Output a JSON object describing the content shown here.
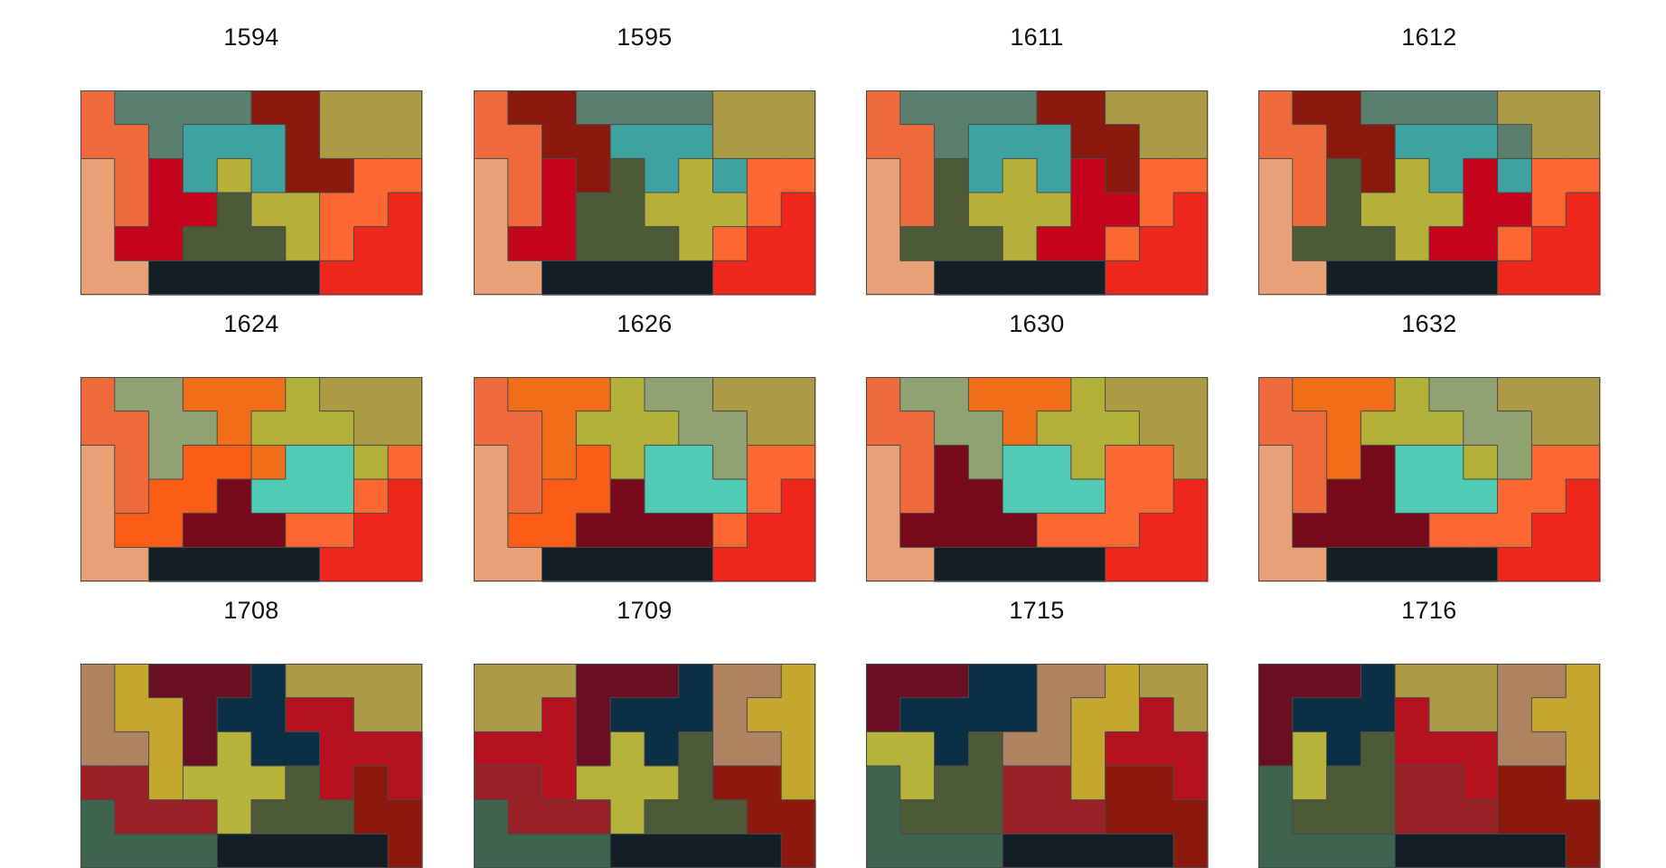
{
  "puzzles": [
    {
      "title": "1594",
      "grid": [
        "ABBBBCCDDD",
        "AABEEECDDD",
        "FAGEHECCJJ",
        "FAGGIHHJJK",
        "FGGIIIHJKK",
        "FFLLLLLKKK"
      ]
    },
    {
      "title": "1595",
      "grid": [
        "ACCBBBBDDD",
        "AACCEEEDDD",
        "FAGCIEHEJJ",
        "FAGIIHHHJK",
        "FGGIIIHJKK",
        "FFLLLLLKKK"
      ]
    },
    {
      "title": "1611",
      "grid": [
        "ABBBBCCDDD",
        "AABEEECCDD",
        "FAIEHEGCJJ",
        "FAIHHHGGJK",
        "FIIIHGGJKK",
        "FFLLLLLKKK"
      ]
    },
    {
      "title": "1612",
      "grid": [
        "ACCBBBBDDD",
        "AACCEEEBDD",
        "FAICHEGEJJ",
        "FAIHHHGGJK",
        "FIIIHGGJKK",
        "FFLLLLLKKK"
      ]
    },
    {
      "title": "1624",
      "grid": [
        "AMMNNNPDDD",
        "AAMMNPPPDD",
        "FAMOONQQPJ",
        "FAOOSQQQJK",
        "FOOSSSJJKK",
        "FFLLLLLKKK"
      ]
    },
    {
      "title": "1626",
      "grid": [
        "ANNNPMMDDD",
        "AANPPPMMDD",
        "FANOPQQMJJ",
        "FAOOSQQQJK",
        "FOOSSSSJKK",
        "FFLLLLLKKK"
      ]
    },
    {
      "title": "1630",
      "grid": [
        "AMMNNNPDDD",
        "AAMMNPPPDD",
        "FASMQQPJJD",
        "FASSQQQJJK",
        "FSSSSJJJKK",
        "FFLLLLLKKK"
      ]
    },
    {
      "title": "1632",
      "grid": [
        "ANNNPMMDDD",
        "AANPPPMMDD",
        "FANSQQPMJJ",
        "FASSQQQJJK",
        "FSSSSJJJKK",
        "FFLLLLLKKK"
      ]
    },
    {
      "title": "1708",
      "grid": [
        "RSTTTUDDDD",
        "RSSTUUVVDD",
        "RRSTWUUVVV",
        "XXSWWWYVZV",
        "GXXXWYYYZZ",
        "GGGGLLLLLZ"
      ]
    },
    {
      "title": "1709",
      "grid": [
        "DDDTTTURRS",
        "DDVTUUURSS",
        "VVVTWUYRRS",
        "XXVWWWYZZS",
        "GXXXWYYYZZ",
        "GGGGLLLLLZ"
      ]
    },
    {
      "title": "1715",
      "grid": [
        "TTTUURRSDD",
        "TUUUURSSVD",
        "WWUYRRSVVV",
        "GWYYXXSZZV",
        "GYYYXXXZZZ",
        "GGGGLLLLLZ"
      ]
    },
    {
      "title": "1716",
      "grid": [
        "TTTUDDDRRS",
        "TUUUVDDRSS",
        "TWUYVVVRRS",
        "GWYYXXVZZS",
        "GYYYXXXZZZ",
        "GGGGLLLLLZ"
      ]
    }
  ],
  "colors": {
    "A": "#ef6a3a",
    "B": "#5b7f6f",
    "C": "#8b1a0e",
    "D": "#ad9a45",
    "E": "#3ea3a0",
    "F": "#e8a177",
    "G": "#c4051d",
    "H": "#b4b03a",
    "I": "#4c5a38",
    "J": "#fd6832",
    "K": "#ee261c",
    "L": "#131e27",
    "M": "#90a271",
    "N": "#f06d1a",
    "O": "#fb5c16",
    "P": "#b2b036",
    "Q": "#52cbb5",
    "S": "#770a1a",
    "R": "#ae8361",
    "T": "#6a0f23",
    "U": "#0b2f44",
    "V": "#b6111f",
    "W": "#b5b33a",
    "X": "#992126",
    "Y": "#4c5a37",
    "Z": "#8d190e",
    "outline": "#4a4a4a"
  }
}
